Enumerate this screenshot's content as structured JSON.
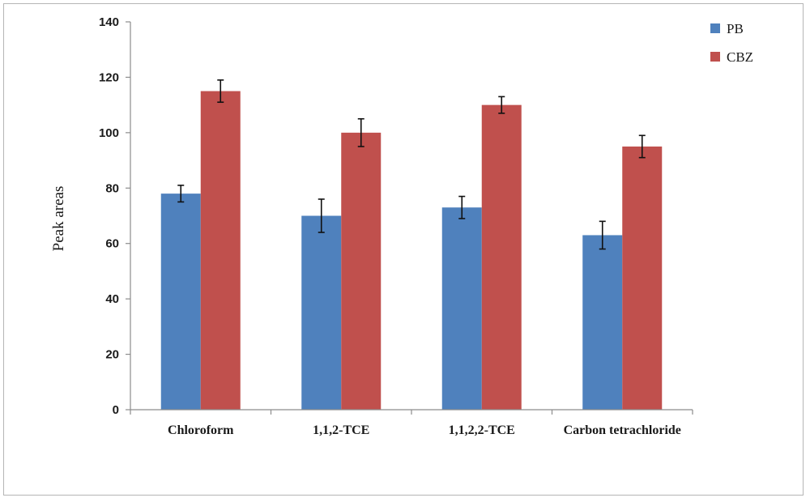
{
  "chart_data": {
    "type": "bar",
    "categories": [
      "Chloroform",
      "1,1,2-TCE",
      "1,1,2,2-TCE",
      "Carbon tetrachloride"
    ],
    "series": [
      {
        "name": "PB",
        "values": [
          78,
          70,
          73,
          63
        ],
        "errors": [
          3,
          6,
          4,
          5
        ],
        "color": "#4f81bd"
      },
      {
        "name": "CBZ",
        "values": [
          115,
          100,
          110,
          95
        ],
        "errors": [
          4,
          5,
          3,
          4
        ],
        "color": "#c0504d"
      }
    ],
    "title": "",
    "xlabel": "",
    "ylabel": "Peak areas",
    "ylim": [
      0,
      140
    ],
    "yticks": [
      0,
      20,
      40,
      60,
      80,
      100,
      120,
      140
    ],
    "grid": false,
    "legend_position": "top-right"
  }
}
